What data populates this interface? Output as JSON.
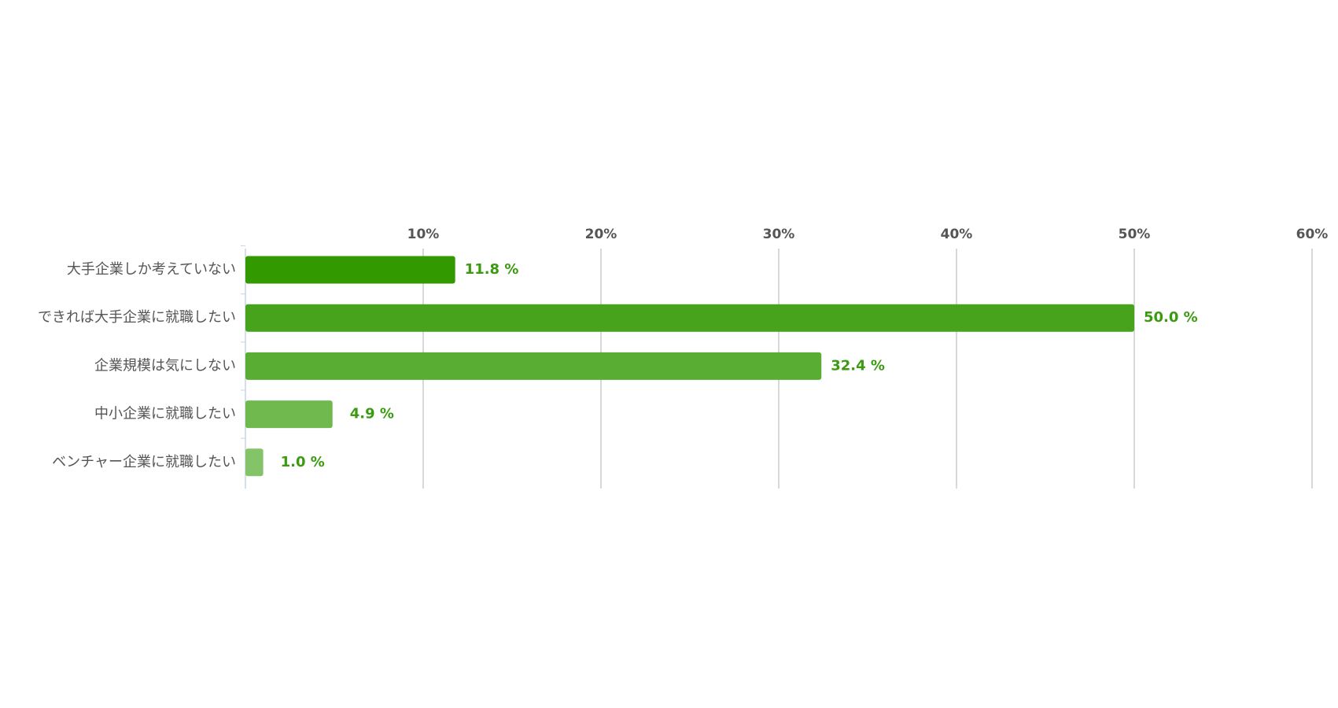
{
  "chart_data": {
    "type": "bar",
    "orientation": "horizontal",
    "categories": [
      "大手企業しか考えていない",
      "できれば大手企業に就職したい",
      "企業規模は気にしない",
      "中小企業に就職したい",
      "ベンチャー企業に就職したい"
    ],
    "values": [
      11.8,
      50.0,
      32.4,
      4.9,
      1.0
    ],
    "value_labels": [
      "11.8 %",
      "50.0 %",
      "32.4 %",
      "4.9 %",
      "1.0 %"
    ],
    "colors": [
      "#339900",
      "#46a31b",
      "#5aad33",
      "#70b94e",
      "#84c468"
    ],
    "xlim": [
      0,
      60
    ],
    "xticks": [
      {
        "value": 10,
        "label": "10%"
      },
      {
        "value": 20,
        "label": "20%"
      },
      {
        "value": 30,
        "label": "30%"
      },
      {
        "value": 40,
        "label": "40%"
      },
      {
        "value": 50,
        "label": "50%"
      },
      {
        "value": 60,
        "label": "60%"
      }
    ],
    "grid": true
  }
}
